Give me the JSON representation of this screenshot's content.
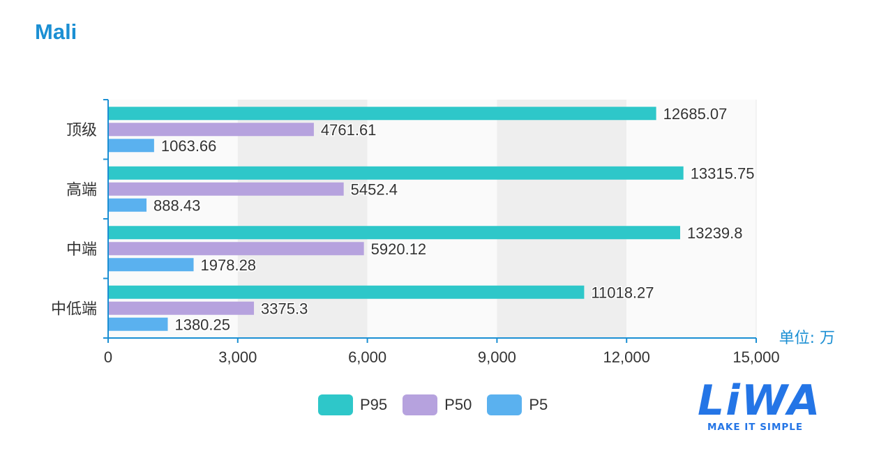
{
  "title": "Mali",
  "unit_label": "单位: 万",
  "colors": {
    "title": "#1b8fd3",
    "axis": "#1b8fd3",
    "band_dark": "#eeeeee",
    "band_light": "#fafafa",
    "series": [
      "#2ec7c9",
      "#b6a2de",
      "#5ab1ef"
    ],
    "logo": "#2475e6"
  },
  "logo": {
    "word": "LiWA",
    "tagline": "MAKE IT SIMPLE"
  },
  "chart_data": {
    "type": "bar",
    "orientation": "horizontal",
    "categories": [
      "顶级",
      "高端",
      "中端",
      "中低端"
    ],
    "series": [
      {
        "name": "P95",
        "values": [
          12685.07,
          13315.75,
          13239.8,
          11018.27
        ]
      },
      {
        "name": "P50",
        "values": [
          4761.61,
          5452.4,
          5920.12,
          3375.3
        ]
      },
      {
        "name": "P5",
        "values": [
          1063.66,
          888.43,
          1978.28,
          1380.25
        ]
      }
    ],
    "data_labels": [
      [
        "12685.07",
        "4761.61",
        "1063.66"
      ],
      [
        "13315.75",
        "5452.4",
        "888.43"
      ],
      [
        "13239.8",
        "5920.12",
        "1978.28"
      ],
      [
        "11018.27",
        "3375.3",
        "1380.25"
      ]
    ],
    "x_ticks": [
      "0",
      "3,000",
      "6,000",
      "9,000",
      "12,000",
      "15,000"
    ],
    "xlim": [
      0,
      15000
    ],
    "grid": "alternating bands",
    "legend_position": "bottom"
  }
}
